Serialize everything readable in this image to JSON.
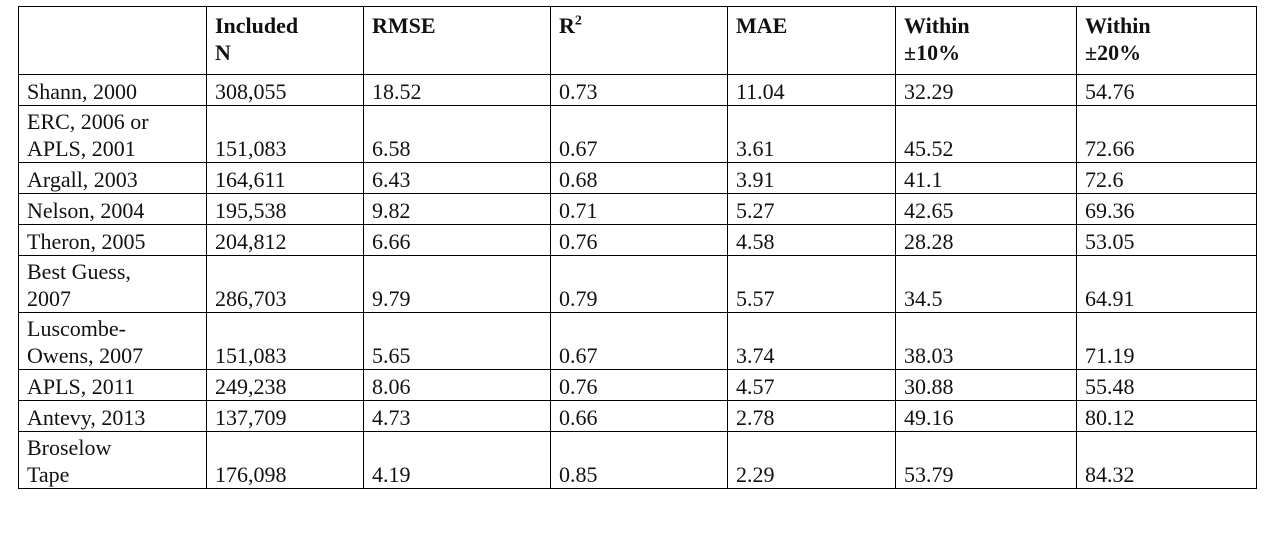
{
  "table": {
    "headers": [
      {
        "line1": "",
        "line2": ""
      },
      {
        "line1": "Included",
        "line2": "N"
      },
      {
        "line1": "RMSE",
        "line2": ""
      },
      {
        "line1": "R",
        "sup": "2",
        "line2": ""
      },
      {
        "line1": "MAE",
        "line2": ""
      },
      {
        "line1": "Within",
        "line2": "±10%"
      },
      {
        "line1": "Within",
        "line2": "±20%"
      }
    ],
    "rows": [
      {
        "method": [
          "Shann, 2000"
        ],
        "included_n": "308,055",
        "rmse": "18.52",
        "r2": "0.73",
        "mae": "11.04",
        "within10": "32.29",
        "within20": "54.76"
      },
      {
        "method": [
          "ERC, 2006 or",
          "APLS, 2001"
        ],
        "included_n": "151,083",
        "rmse": "6.58",
        "r2": "0.67",
        "mae": "3.61",
        "within10": "45.52",
        "within20": "72.66"
      },
      {
        "method": [
          "Argall, 2003"
        ],
        "included_n": "164,611",
        "rmse": "6.43",
        "r2": "0.68",
        "mae": "3.91",
        "within10": "41.1",
        "within20": "72.6"
      },
      {
        "method": [
          "Nelson, 2004"
        ],
        "included_n": "195,538",
        "rmse": "9.82",
        "r2": "0.71",
        "mae": "5.27",
        "within10": "42.65",
        "within20": "69.36"
      },
      {
        "method": [
          "Theron, 2005"
        ],
        "included_n": "204,812",
        "rmse": "6.66",
        "r2": "0.76",
        "mae": "4.58",
        "within10": "28.28",
        "within20": "53.05"
      },
      {
        "method": [
          "Best Guess,",
          "2007"
        ],
        "included_n": "286,703",
        "rmse": "9.79",
        "r2": "0.79",
        "mae": "5.57",
        "within10": "34.5",
        "within20": "64.91"
      },
      {
        "method": [
          "Luscombe-",
          "Owens, 2007"
        ],
        "included_n": "151,083",
        "rmse": "5.65",
        "r2": "0.67",
        "mae": "3.74",
        "within10": "38.03",
        "within20": "71.19"
      },
      {
        "method": [
          "APLS, 2011"
        ],
        "included_n": "249,238",
        "rmse": "8.06",
        "r2": "0.76",
        "mae": "4.57",
        "within10": "30.88",
        "within20": "55.48"
      },
      {
        "method": [
          "Antevy, 2013"
        ],
        "included_n": "137,709",
        "rmse": "4.73",
        "r2": "0.66",
        "mae": "2.78",
        "within10": "49.16",
        "within20": "80.12"
      },
      {
        "method": [
          "Broselow",
          "Tape"
        ],
        "included_n": "176,098",
        "rmse": "4.19",
        "r2": "0.85",
        "mae": "2.29",
        "within10": "53.79",
        "within20": "84.32"
      }
    ]
  }
}
